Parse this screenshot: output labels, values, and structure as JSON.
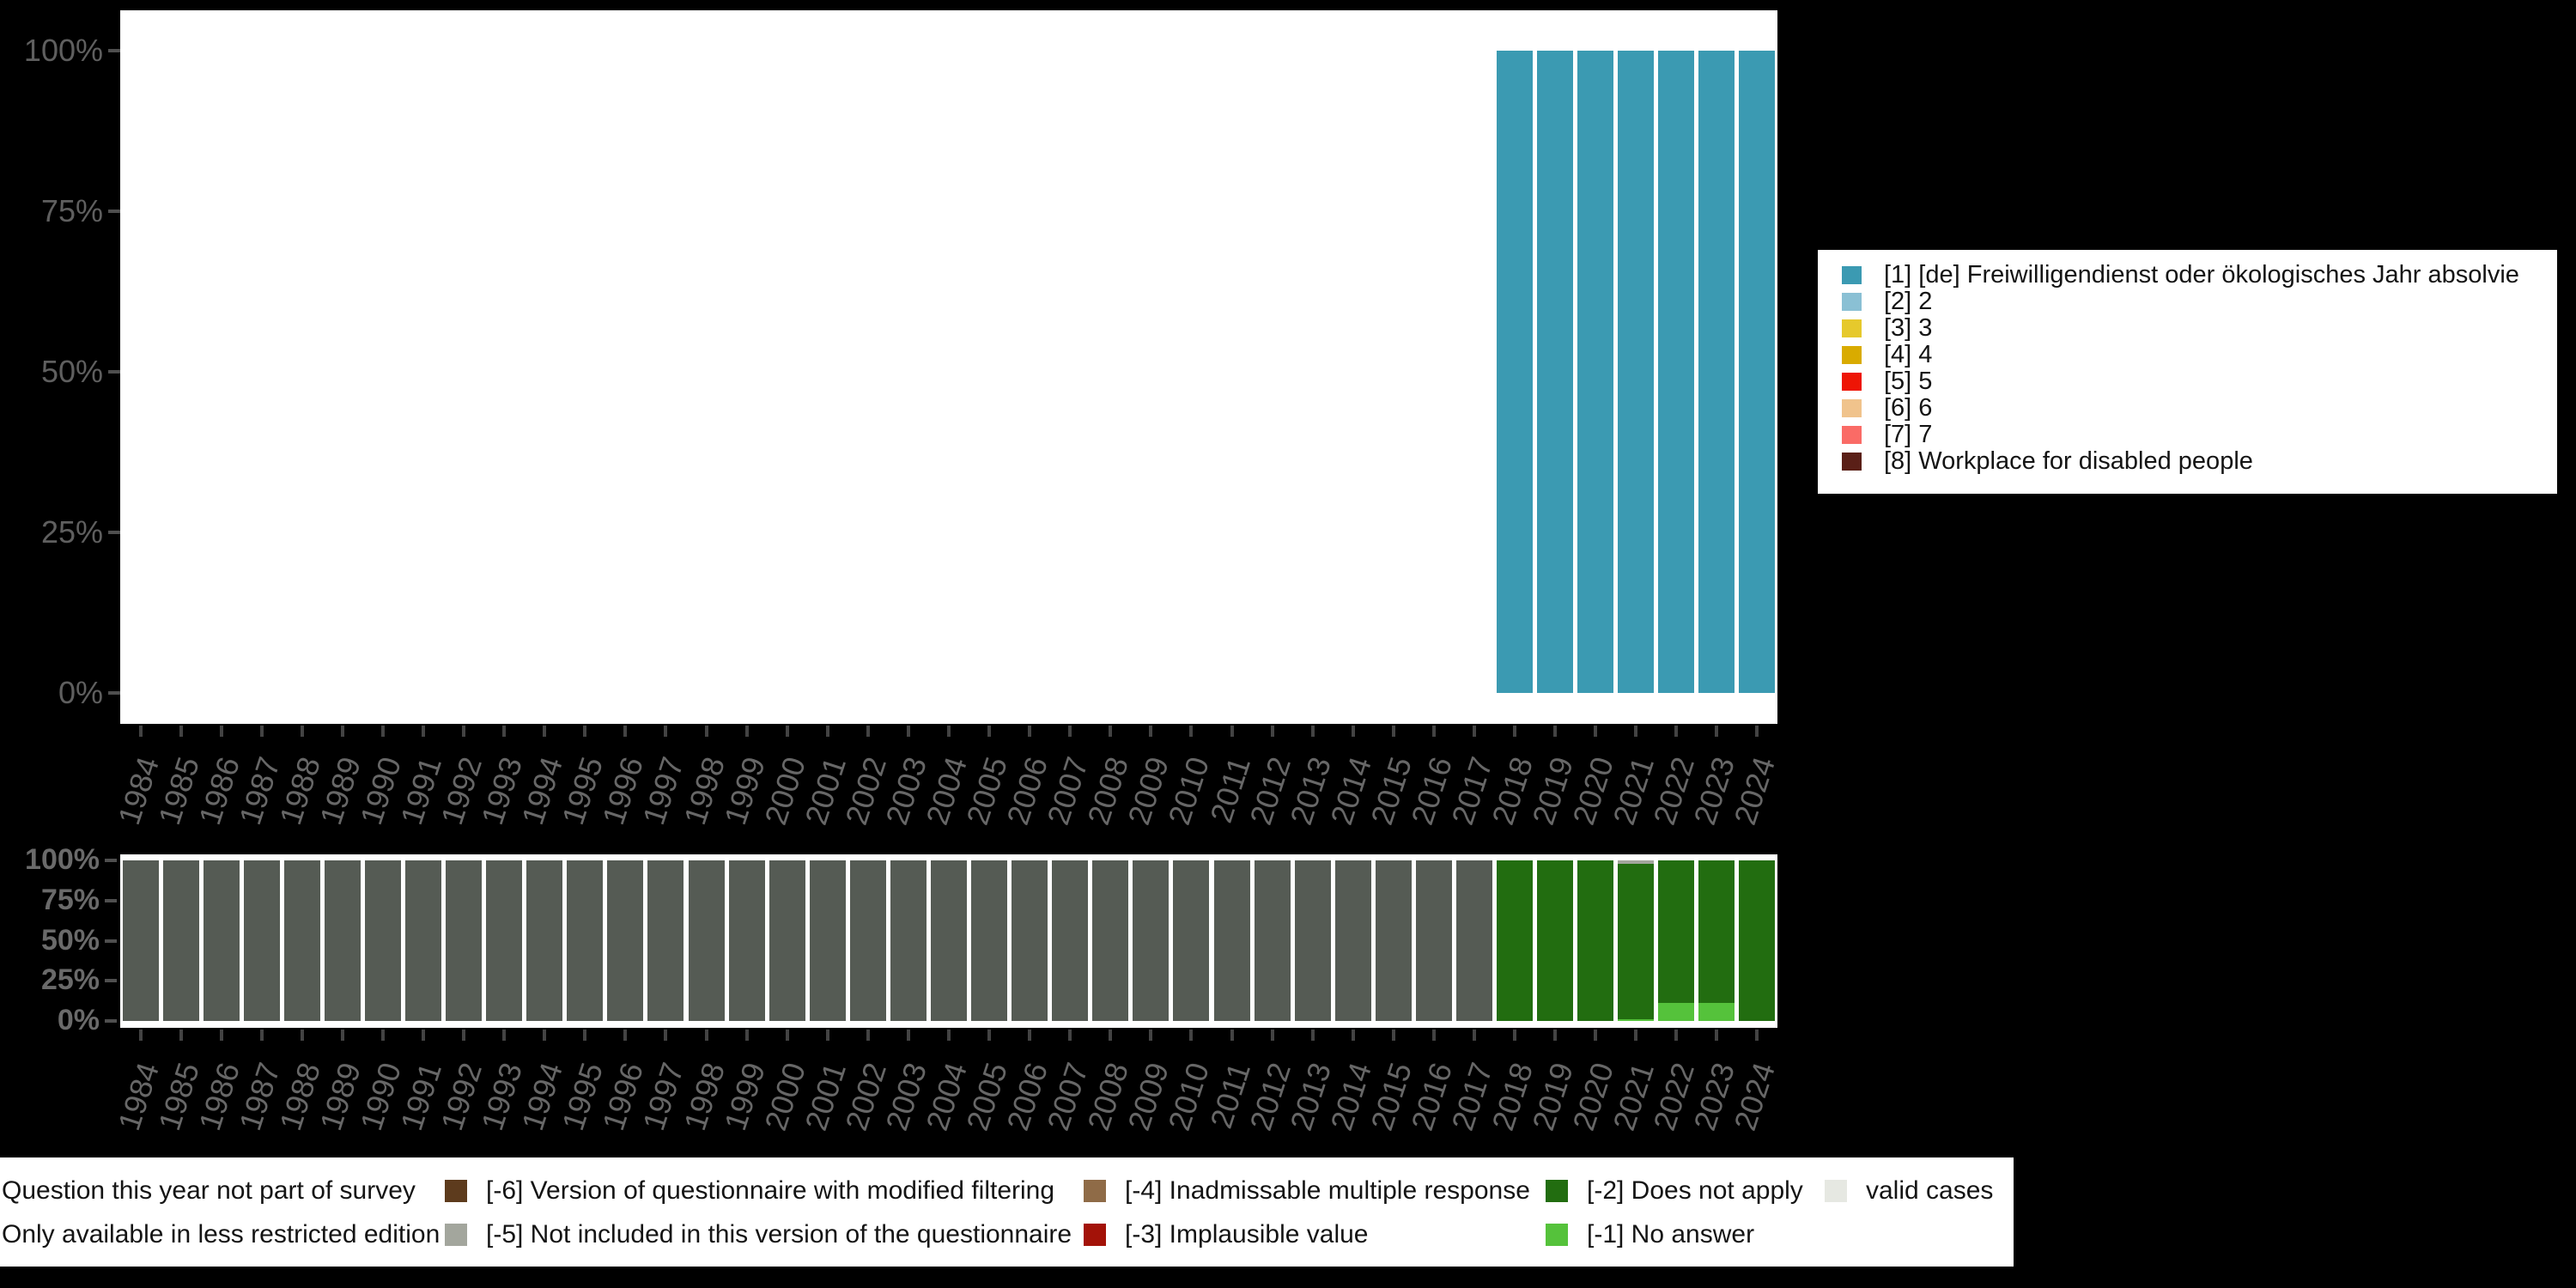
{
  "colors": {
    "background": "#000000",
    "panel": "#ffffff",
    "axis_tick": "#4f4f4f",
    "axis_label": "#5f5f5f",
    "year_label": "#676767",
    "legend_text": "#141414"
  },
  "chart_data": [
    {
      "type": "bar",
      "stacked": true,
      "title": "",
      "xlabel": "",
      "ylabel": "",
      "ylim": [
        0,
        100
      ],
      "grid": false,
      "legend_position": "right",
      "ytick_labels": [
        "100%",
        "75%",
        "50%",
        "25%",
        "0%"
      ],
      "categories": [
        "1984",
        "1985",
        "1986",
        "1987",
        "1988",
        "1989",
        "1990",
        "1991",
        "1992",
        "1993",
        "1994",
        "1995",
        "1996",
        "1997",
        "1998",
        "1999",
        "2000",
        "2001",
        "2002",
        "2003",
        "2004",
        "2005",
        "2006",
        "2007",
        "2008",
        "2009",
        "2010",
        "2011",
        "2012",
        "2013",
        "2014",
        "2015",
        "2016",
        "2017",
        "2018",
        "2019",
        "2020",
        "2021",
        "2022",
        "2023",
        "2024"
      ],
      "series": [
        {
          "name": "[1] [de] Freiwilligendienst oder ökologisches Jahr absolvie",
          "color": "#3b9ab2",
          "values": {
            "2018": 100,
            "2019": 100,
            "2020": 100,
            "2021": 100,
            "2022": 100,
            "2023": 100,
            "2024": 100
          }
        },
        {
          "name": "[2] 2",
          "color": "#8ac0d4",
          "values": {}
        },
        {
          "name": "[3] 3",
          "color": "#e6c92c",
          "values": {}
        },
        {
          "name": "[4] 4",
          "color": "#d9ab00",
          "values": {}
        },
        {
          "name": "[5] 5",
          "color": "#ee1505",
          "values": {}
        },
        {
          "name": "[6] 6",
          "color": "#f0c38c",
          "values": {}
        },
        {
          "name": "[7] 7",
          "color": "#fa6b66",
          "values": {}
        },
        {
          "name": "[8] Workplace for disabled people",
          "color": "#5a1f17",
          "values": {}
        }
      ]
    },
    {
      "type": "bar",
      "stacked": true,
      "title": "",
      "xlabel": "",
      "ylabel": "",
      "ylim": [
        0,
        100
      ],
      "grid": false,
      "legend_position": "bottom",
      "ytick_labels": [
        "100%",
        "75%",
        "50%",
        "25%",
        "0%"
      ],
      "categories": [
        "1984",
        "1985",
        "1986",
        "1987",
        "1988",
        "1989",
        "1990",
        "1991",
        "1992",
        "1993",
        "1994",
        "1995",
        "1996",
        "1997",
        "1998",
        "1999",
        "2000",
        "2001",
        "2002",
        "2003",
        "2004",
        "2005",
        "2006",
        "2007",
        "2008",
        "2009",
        "2010",
        "2011",
        "2012",
        "2013",
        "2014",
        "2015",
        "2016",
        "2017",
        "2018",
        "2019",
        "2020",
        "2021",
        "2022",
        "2023",
        "2024"
      ],
      "series": [
        {
          "name": "Question this year not part of survey",
          "color": "#555b54",
          "values": {
            "1984": 100,
            "1985": 100,
            "1986": 100,
            "1987": 100,
            "1988": 100,
            "1989": 100,
            "1990": 100,
            "1991": 100,
            "1992": 100,
            "1993": 100,
            "1994": 100,
            "1995": 100,
            "1996": 100,
            "1997": 100,
            "1998": 100,
            "1999": 100,
            "2000": 100,
            "2001": 100,
            "2002": 100,
            "2003": 100,
            "2004": 100,
            "2005": 100,
            "2006": 100,
            "2007": 100,
            "2008": 100,
            "2009": 100,
            "2010": 100,
            "2011": 100,
            "2012": 100,
            "2013": 100,
            "2014": 100,
            "2015": 100,
            "2016": 100,
            "2017": 100
          }
        },
        {
          "name": "Only available in less restricted edition",
          "color": "#9a9a94",
          "values": {}
        },
        {
          "name": "[-6] Version of questionnaire with modified filtering",
          "color": "#5d3b1d",
          "values": {}
        },
        {
          "name": "[-5] Not included in this version of the questionnaire",
          "color": "#a3a69d",
          "values": {
            "2021": 2
          }
        },
        {
          "name": "[-4] Inadmissable multiple response",
          "color": "#8f6b47",
          "values": {}
        },
        {
          "name": "[-3] Implausible value",
          "color": "#a31208",
          "values": {}
        },
        {
          "name": "[-2] Does not apply",
          "color": "#226d10",
          "values": {
            "2018": 100,
            "2019": 100,
            "2020": 100,
            "2021": 97,
            "2022": 89,
            "2023": 89,
            "2024": 100
          }
        },
        {
          "name": "[-1] No answer",
          "color": "#55c23b",
          "values": {
            "2021": 1,
            "2022": 11,
            "2023": 11
          }
        },
        {
          "name": "valid cases",
          "color": "#e6e8e2",
          "values": {}
        }
      ]
    }
  ]
}
